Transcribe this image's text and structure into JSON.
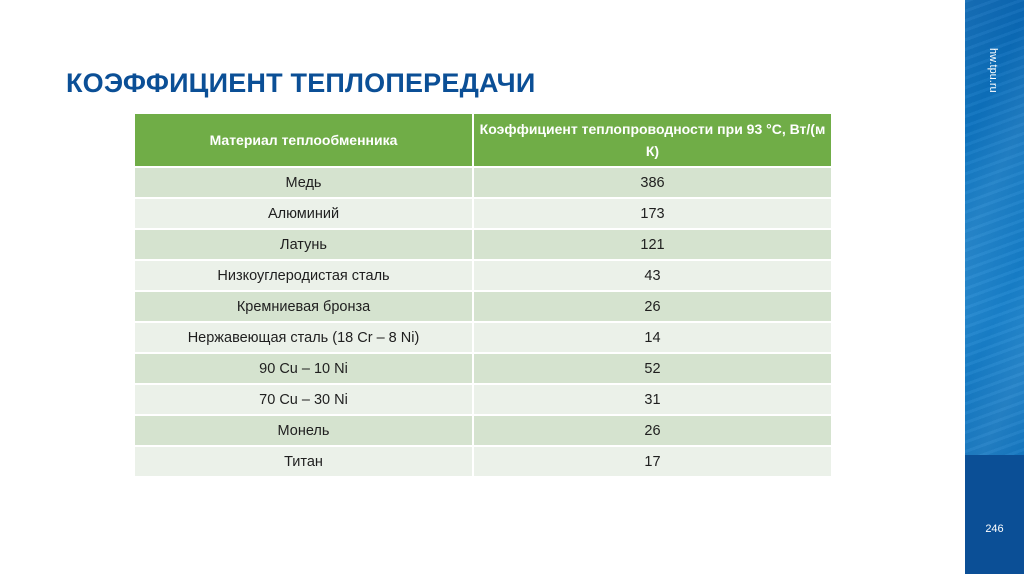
{
  "slide": {
    "title": "КОЭФФИЦИЕНТ ТЕПЛОПЕРЕДАЧИ",
    "site": "hw.tpu.ru",
    "page_number": "246",
    "colors": {
      "title": "#0b4f96",
      "header_bg": "#70ad47",
      "row_odd": "#d5e3cf",
      "row_even": "#ebf1e9",
      "side_panel": "#0f78c4",
      "side_panel_bottom": "#0b4f96"
    }
  },
  "table": {
    "headers": [
      "Материал теплообменника",
      "Коэффициент теплопроводности при 93 °С, Вт/(м К)"
    ],
    "rows": [
      {
        "material": "Медь",
        "value": "386"
      },
      {
        "material": "Алюминий",
        "value": "173"
      },
      {
        "material": "Латунь",
        "value": "121"
      },
      {
        "material": "Низкоуглеродистая сталь",
        "value": "43"
      },
      {
        "material": "Кремниевая бронза",
        "value": "26"
      },
      {
        "material": "Нержавеющая сталь (18 Cr – 8 Ni)",
        "value": "14"
      },
      {
        "material": "90 Cu – 10 Ni",
        "value": "52"
      },
      {
        "material": "70 Cu – 30 Ni",
        "value": "31"
      },
      {
        "material": "Монель",
        "value": "26"
      },
      {
        "material": "Титан",
        "value": "17"
      }
    ]
  }
}
